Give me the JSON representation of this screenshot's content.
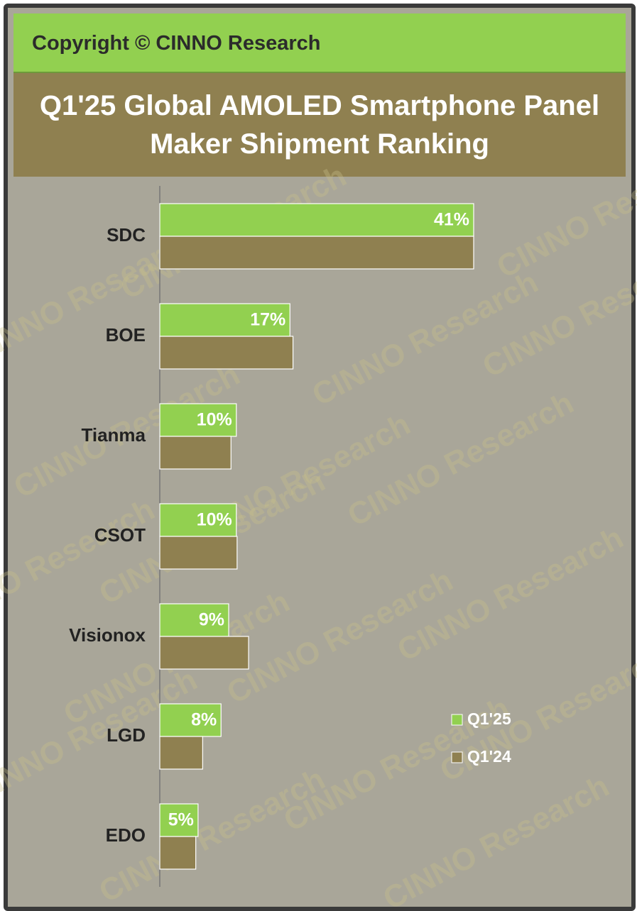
{
  "chart_data": {
    "type": "bar",
    "orientation": "horizontal",
    "header": "Copyright © CINNO Research",
    "title": "Q1'25 Global AMOLED Smartphone Panel Maker Shipment Ranking",
    "watermark": "CINNO Research",
    "categories": [
      "SDC",
      "BOE",
      "Tianma",
      "CSOT",
      "Visionox",
      "LGD",
      "EDO"
    ],
    "series": [
      {
        "name": "Q1'25",
        "color": "#92d050",
        "values": [
          41,
          17,
          10,
          10,
          9,
          8,
          5
        ],
        "value_labels": [
          "41%",
          "17%",
          "10%",
          "10%",
          "9%",
          "8%",
          "5%"
        ]
      },
      {
        "name": "Q1'24",
        "color": "#8f8050",
        "values": [
          41,
          17.4,
          9.3,
          10.1,
          11.6,
          5.6,
          4.7
        ]
      }
    ],
    "legend": "lower-right",
    "grid": false
  }
}
